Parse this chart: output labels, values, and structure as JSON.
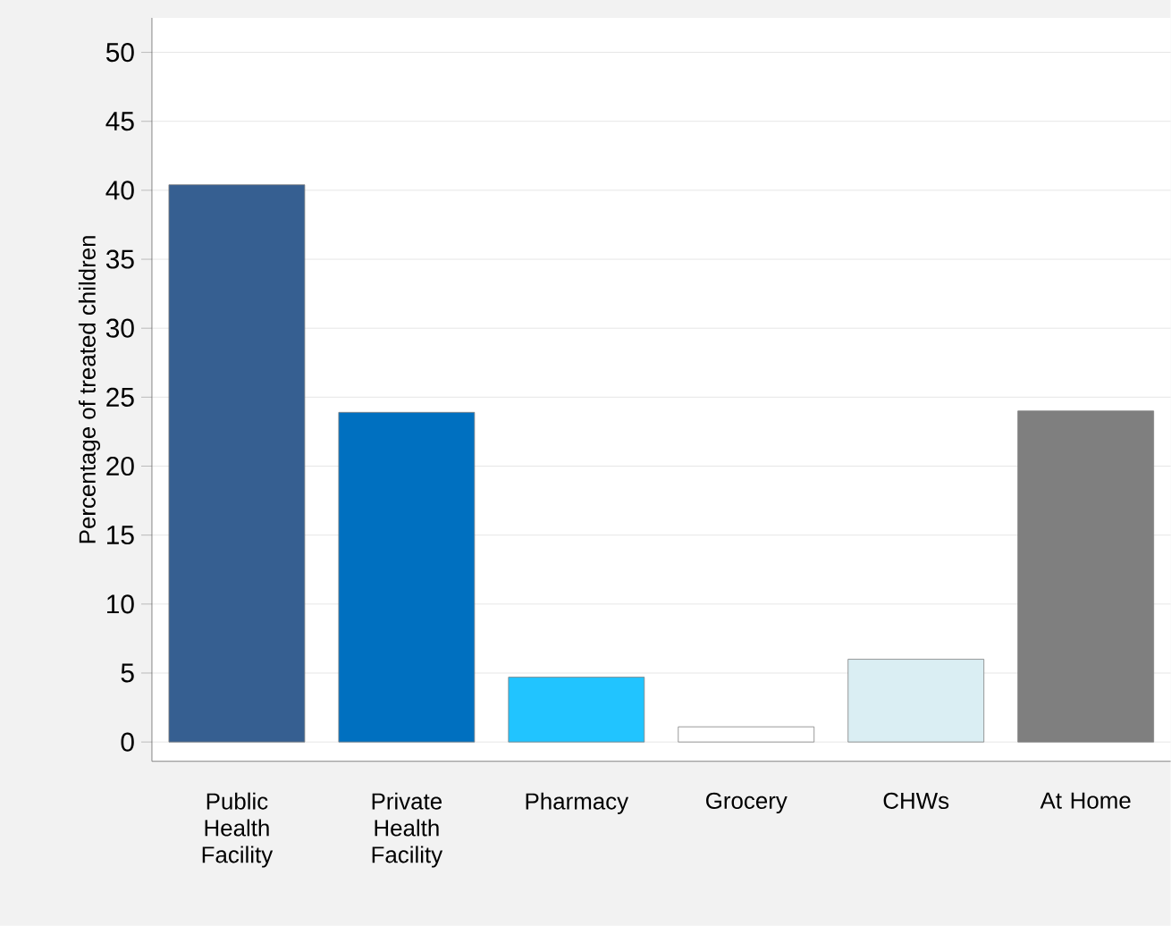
{
  "chart_data": {
    "type": "bar",
    "ylabel": "Percentage of treated children",
    "categories": [
      "Public Health Facility",
      "Private Health Facility",
      "Pharmacy",
      "Grocery",
      "CHWs",
      "At Home"
    ],
    "values": [
      40.4,
      23.9,
      4.7,
      1.1,
      6.0,
      24.0
    ],
    "colors": [
      "#365f91",
      "#0070c0",
      "#21c4ff",
      "#ffffff",
      "#daeef3",
      "#7f7f7f"
    ],
    "ylim": [
      -1.4,
      52.5
    ],
    "yticks": [
      0,
      5,
      10,
      15,
      20,
      25,
      30,
      35,
      40,
      45,
      50
    ],
    "grid": "y"
  }
}
